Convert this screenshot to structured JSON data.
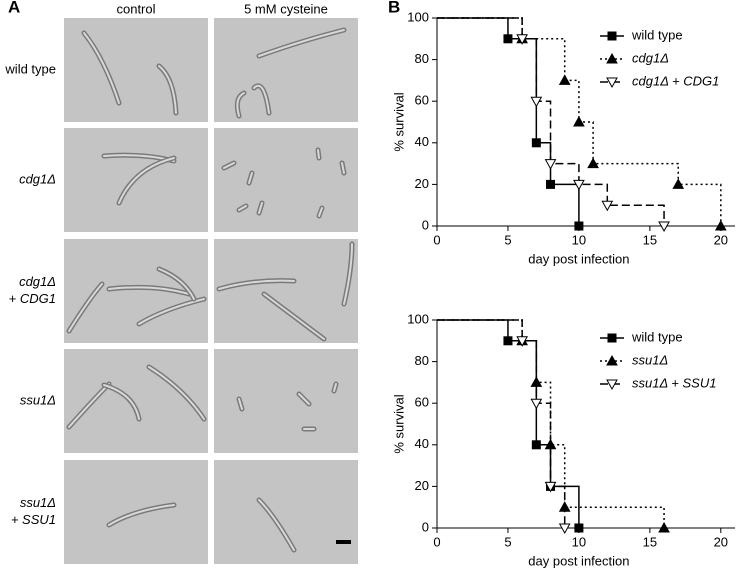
{
  "panel_a": {
    "label": "A",
    "columns": [
      "control",
      "5 mM cysteine"
    ],
    "rows": [
      [
        "wild type"
      ],
      [
        "cdg1Δ"
      ],
      [
        "cdg1Δ",
        "+ CDG1"
      ],
      [
        "ssu1Δ"
      ],
      [
        "ssu1Δ",
        "+ SSU1"
      ]
    ]
  },
  "panel_b": {
    "label": "B"
  },
  "chart_data": [
    {
      "type": "step",
      "xlabel": "day post infection",
      "ylabel": "% survival",
      "xlim": [
        0,
        21
      ],
      "ylim": [
        0,
        100
      ],
      "xticks": [
        0,
        5,
        10,
        15,
        20
      ],
      "yticks": [
        0,
        20,
        40,
        60,
        80,
        100
      ],
      "legend": "upper right",
      "series": [
        {
          "name": "wild type",
          "color": "#000000",
          "line_style": "solid",
          "marker": "square",
          "x": [
            0,
            5,
            7,
            8,
            10
          ],
          "values": [
            100,
            90,
            40,
            20,
            0
          ]
        },
        {
          "name": "cdg1Δ",
          "color": "#000000",
          "line_style": "dotted",
          "marker": "triangle-filled",
          "x": [
            0,
            6,
            9,
            10,
            11,
            17,
            20
          ],
          "values": [
            100,
            90,
            70,
            50,
            30,
            20,
            0
          ]
        },
        {
          "name": "cdg1Δ + CDG1",
          "color": "#000000",
          "line_style": "dashed",
          "marker": "triangle-open",
          "x": [
            0,
            6,
            7,
            8,
            10,
            12,
            16
          ],
          "values": [
            100,
            90,
            60,
            30,
            20,
            10,
            0
          ]
        }
      ]
    },
    {
      "type": "step",
      "xlabel": "day post infection",
      "ylabel": "% survival",
      "xlim": [
        0,
        21
      ],
      "ylim": [
        0,
        100
      ],
      "xticks": [
        0,
        5,
        10,
        15,
        20
      ],
      "yticks": [
        0,
        20,
        40,
        60,
        80,
        100
      ],
      "legend": "upper right",
      "series": [
        {
          "name": "wild type",
          "color": "#000000",
          "line_style": "solid",
          "marker": "square",
          "x": [
            0,
            5,
            7,
            8,
            10
          ],
          "values": [
            100,
            90,
            40,
            20,
            0
          ]
        },
        {
          "name": "ssu1Δ",
          "color": "#000000",
          "line_style": "dotted",
          "marker": "triangle-filled",
          "x": [
            0,
            6,
            7,
            8,
            9,
            16
          ],
          "values": [
            100,
            90,
            70,
            40,
            10,
            0
          ]
        },
        {
          "name": "ssu1Δ + SSU1",
          "color": "#000000",
          "line_style": "dashed",
          "marker": "triangle-open",
          "x": [
            0,
            6,
            7,
            8,
            9
          ],
          "values": [
            100,
            90,
            60,
            20,
            0
          ]
        }
      ]
    }
  ]
}
